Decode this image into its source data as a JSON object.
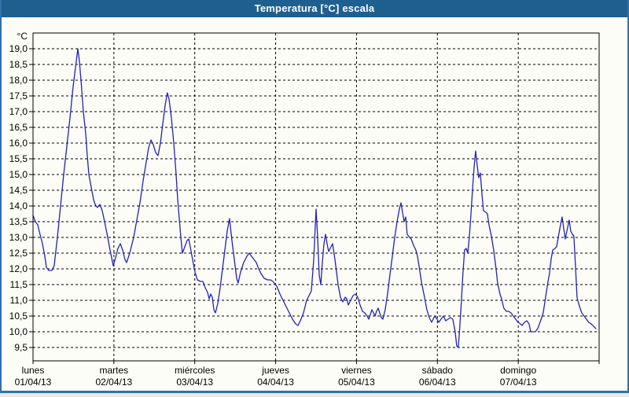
{
  "window": {
    "title": "Temperatura [°C] escala"
  },
  "colors": {
    "titlebar_bg": "#1f5f8f",
    "titlebar_text": "#ffffff",
    "frame_border": "#3470a8",
    "content_bg": "#fdfdf7",
    "grid": "#000000",
    "axis": "#000000",
    "series_line": "#2222b8"
  },
  "chart_data": {
    "type": "line",
    "title": "Temperatura [°C] escala",
    "grid": "dashed",
    "legend_position": "none",
    "y_axis": {
      "unit_label": "°C",
      "displayed_min": 9.0,
      "displayed_max": 19.5,
      "tick_max": 19.0,
      "tick_min": 9.5,
      "tick_step": 0.5,
      "tick_labels_top_to_bottom": [
        "19,0",
        "18,5",
        "18,0",
        "17,5",
        "17,0",
        "16,5",
        "16,0",
        "15,5",
        "15,0",
        "14,5",
        "14,0",
        "13,5",
        "13,0",
        "12,5",
        "12,0",
        "11,5",
        "11,0",
        "10,5",
        "10,0",
        "9,5"
      ]
    },
    "x_axis": {
      "range_days": [
        0,
        7
      ],
      "days": [
        {
          "name": "lunes",
          "date": "01/04/13"
        },
        {
          "name": "martes",
          "date": "02/04/13"
        },
        {
          "name": "miércoles",
          "date": "03/04/13"
        },
        {
          "name": "jueves",
          "date": "04/04/13"
        },
        {
          "name": "viernes",
          "date": "05/04/13"
        },
        {
          "name": "sábado",
          "date": "06/04/13"
        },
        {
          "name": "domingo",
          "date": "07/04/13"
        }
      ]
    },
    "series": [
      {
        "name": "Temperatura",
        "color": "#2222b8",
        "points_day_temp": [
          [
            0.0,
            13.7
          ],
          [
            0.029,
            13.5
          ],
          [
            0.058,
            13.4
          ],
          [
            0.087,
            13.1
          ],
          [
            0.117,
            12.8
          ],
          [
            0.146,
            12.4
          ],
          [
            0.165,
            12.05
          ],
          [
            0.194,
            11.95
          ],
          [
            0.233,
            11.95
          ],
          [
            0.262,
            12.1
          ],
          [
            0.301,
            13.0
          ],
          [
            0.34,
            14.0
          ],
          [
            0.379,
            15.0
          ],
          [
            0.418,
            15.9
          ],
          [
            0.457,
            16.8
          ],
          [
            0.496,
            17.8
          ],
          [
            0.525,
            18.4
          ],
          [
            0.554,
            19.0
          ],
          [
            0.574,
            18.6
          ],
          [
            0.593,
            18.0
          ],
          [
            0.622,
            17.0
          ],
          [
            0.651,
            16.3
          ],
          [
            0.671,
            15.6
          ],
          [
            0.69,
            15.0
          ],
          [
            0.719,
            14.6
          ],
          [
            0.749,
            14.2
          ],
          [
            0.768,
            14.05
          ],
          [
            0.797,
            13.95
          ],
          [
            0.826,
            14.05
          ],
          [
            0.856,
            13.85
          ],
          [
            0.885,
            13.5
          ],
          [
            0.924,
            13.0
          ],
          [
            0.953,
            12.6
          ],
          [
            0.992,
            12.1
          ],
          [
            1.021,
            12.35
          ],
          [
            1.05,
            12.65
          ],
          [
            1.079,
            12.8
          ],
          [
            1.108,
            12.6
          ],
          [
            1.137,
            12.3
          ],
          [
            1.157,
            12.2
          ],
          [
            1.196,
            12.5
          ],
          [
            1.244,
            13.0
          ],
          [
            1.283,
            13.55
          ],
          [
            1.322,
            14.1
          ],
          [
            1.361,
            14.8
          ],
          [
            1.4,
            15.4
          ],
          [
            1.429,
            15.85
          ],
          [
            1.458,
            16.1
          ],
          [
            1.487,
            15.95
          ],
          [
            1.517,
            15.7
          ],
          [
            1.546,
            15.6
          ],
          [
            1.575,
            16.0
          ],
          [
            1.604,
            16.6
          ],
          [
            1.633,
            17.2
          ],
          [
            1.662,
            17.6
          ],
          [
            1.682,
            17.4
          ],
          [
            1.711,
            16.8
          ],
          [
            1.74,
            16.0
          ],
          [
            1.769,
            15.0
          ],
          [
            1.789,
            14.2
          ],
          [
            1.808,
            13.6
          ],
          [
            1.828,
            13.0
          ],
          [
            1.847,
            12.5
          ],
          [
            1.876,
            12.7
          ],
          [
            1.905,
            12.9
          ],
          [
            1.925,
            12.95
          ],
          [
            1.944,
            12.7
          ],
          [
            1.973,
            12.3
          ],
          [
            2.003,
            11.9
          ],
          [
            2.032,
            11.65
          ],
          [
            2.071,
            11.6
          ],
          [
            2.1,
            11.6
          ],
          [
            2.129,
            11.4
          ],
          [
            2.158,
            11.25
          ],
          [
            2.178,
            11.05
          ],
          [
            2.197,
            11.2
          ],
          [
            2.217,
            11.1
          ],
          [
            2.236,
            10.7
          ],
          [
            2.256,
            10.6
          ],
          [
            2.285,
            10.9
          ],
          [
            2.314,
            11.4
          ],
          [
            2.343,
            12.0
          ],
          [
            2.372,
            12.6
          ],
          [
            2.401,
            13.2
          ],
          [
            2.43,
            13.6
          ],
          [
            2.46,
            12.9
          ],
          [
            2.489,
            12.3
          ],
          [
            2.518,
            11.7
          ],
          [
            2.537,
            11.55
          ],
          [
            2.567,
            11.9
          ],
          [
            2.605,
            12.2
          ],
          [
            2.644,
            12.4
          ],
          [
            2.673,
            12.5
          ],
          [
            2.703,
            12.4
          ],
          [
            2.732,
            12.3
          ],
          [
            2.761,
            12.2
          ],
          [
            2.79,
            12.0
          ],
          [
            2.819,
            11.85
          ],
          [
            2.858,
            11.7
          ],
          [
            2.897,
            11.65
          ],
          [
            2.936,
            11.65
          ],
          [
            2.965,
            11.6
          ],
          [
            3.014,
            11.45
          ],
          [
            3.053,
            11.2
          ],
          [
            3.092,
            11.0
          ],
          [
            3.13,
            10.8
          ],
          [
            3.169,
            10.6
          ],
          [
            3.208,
            10.4
          ],
          [
            3.247,
            10.25
          ],
          [
            3.276,
            10.2
          ],
          [
            3.306,
            10.35
          ],
          [
            3.344,
            10.6
          ],
          [
            3.383,
            11.0
          ],
          [
            3.413,
            11.15
          ],
          [
            3.442,
            11.3
          ],
          [
            3.471,
            12.3
          ],
          [
            3.5,
            13.9
          ],
          [
            3.519,
            13.0
          ],
          [
            3.539,
            11.8
          ],
          [
            3.558,
            11.5
          ],
          [
            3.578,
            12.2
          ],
          [
            3.597,
            12.8
          ],
          [
            3.617,
            13.1
          ],
          [
            3.636,
            12.8
          ],
          [
            3.656,
            12.55
          ],
          [
            3.685,
            12.7
          ],
          [
            3.704,
            12.8
          ],
          [
            3.733,
            12.3
          ],
          [
            3.753,
            11.9
          ],
          [
            3.772,
            11.5
          ],
          [
            3.801,
            11.1
          ],
          [
            3.831,
            10.95
          ],
          [
            3.86,
            11.1
          ],
          [
            3.879,
            11.05
          ],
          [
            3.899,
            10.85
          ],
          [
            3.928,
            11.0
          ],
          [
            3.957,
            11.15
          ],
          [
            3.986,
            11.2
          ],
          [
            4.015,
            11.1
          ],
          [
            4.044,
            10.85
          ],
          [
            4.074,
            10.65
          ],
          [
            4.103,
            10.6
          ],
          [
            4.132,
            10.5
          ],
          [
            4.151,
            10.4
          ],
          [
            4.171,
            10.55
          ],
          [
            4.19,
            10.7
          ],
          [
            4.21,
            10.6
          ],
          [
            4.229,
            10.5
          ],
          [
            4.248,
            10.65
          ],
          [
            4.268,
            10.75
          ],
          [
            4.287,
            10.6
          ],
          [
            4.307,
            10.45
          ],
          [
            4.326,
            10.4
          ],
          [
            4.355,
            10.7
          ],
          [
            4.384,
            11.2
          ],
          [
            4.413,
            11.8
          ],
          [
            4.443,
            12.4
          ],
          [
            4.472,
            13.0
          ],
          [
            4.501,
            13.5
          ],
          [
            4.53,
            13.9
          ],
          [
            4.55,
            14.1
          ],
          [
            4.569,
            13.8
          ],
          [
            4.589,
            13.5
          ],
          [
            4.608,
            13.65
          ],
          [
            4.627,
            13.1
          ],
          [
            4.656,
            13.0
          ],
          [
            4.676,
            12.95
          ],
          [
            4.705,
            12.75
          ],
          [
            4.734,
            12.6
          ],
          [
            4.754,
            12.4
          ],
          [
            4.773,
            12.1
          ],
          [
            4.802,
            11.6
          ],
          [
            4.841,
            11.1
          ],
          [
            4.87,
            10.7
          ],
          [
            4.899,
            10.45
          ],
          [
            4.929,
            10.3
          ],
          [
            4.948,
            10.4
          ],
          [
            4.967,
            10.5
          ],
          [
            4.996,
            10.4
          ],
          [
            5.016,
            10.3
          ],
          [
            5.045,
            10.4
          ],
          [
            5.074,
            10.5
          ],
          [
            5.103,
            10.35
          ],
          [
            5.132,
            10.4
          ],
          [
            5.161,
            10.45
          ],
          [
            5.191,
            10.4
          ],
          [
            5.22,
            10.0
          ],
          [
            5.239,
            9.55
          ],
          [
            5.259,
            9.5
          ],
          [
            5.278,
            10.2
          ],
          [
            5.298,
            11.0
          ],
          [
            5.317,
            11.9
          ],
          [
            5.337,
            12.6
          ],
          [
            5.356,
            12.65
          ],
          [
            5.375,
            12.5
          ],
          [
            5.395,
            13.0
          ],
          [
            5.414,
            13.7
          ],
          [
            5.434,
            14.5
          ],
          [
            5.453,
            15.2
          ],
          [
            5.473,
            15.75
          ],
          [
            5.492,
            15.3
          ],
          [
            5.511,
            14.9
          ],
          [
            5.531,
            15.05
          ],
          [
            5.55,
            14.4
          ],
          [
            5.57,
            13.85
          ],
          [
            5.599,
            13.8
          ],
          [
            5.618,
            13.75
          ],
          [
            5.638,
            13.4
          ],
          [
            5.667,
            13.05
          ],
          [
            5.696,
            12.6
          ],
          [
            5.725,
            12.0
          ],
          [
            5.745,
            11.55
          ],
          [
            5.774,
            11.2
          ],
          [
            5.793,
            11.05
          ],
          [
            5.822,
            10.75
          ],
          [
            5.852,
            10.65
          ],
          [
            5.881,
            10.65
          ],
          [
            5.91,
            10.6
          ],
          [
            5.939,
            10.5
          ],
          [
            5.968,
            10.4
          ],
          [
            5.998,
            10.3
          ],
          [
            6.027,
            10.25
          ],
          [
            6.047,
            10.2
          ],
          [
            6.076,
            10.3
          ],
          [
            6.105,
            10.35
          ],
          [
            6.134,
            10.25
          ],
          [
            6.154,
            10.0
          ],
          [
            6.183,
            10.0
          ],
          [
            6.212,
            10.0
          ],
          [
            6.241,
            10.1
          ],
          [
            6.27,
            10.3
          ],
          [
            6.309,
            10.6
          ],
          [
            6.338,
            11.1
          ],
          [
            6.368,
            11.6
          ],
          [
            6.387,
            11.85
          ],
          [
            6.406,
            12.3
          ],
          [
            6.426,
            12.6
          ],
          [
            6.455,
            12.65
          ],
          [
            6.474,
            12.7
          ],
          [
            6.494,
            13.0
          ],
          [
            6.523,
            13.4
          ],
          [
            6.542,
            13.65
          ],
          [
            6.562,
            13.3
          ],
          [
            6.581,
            12.95
          ],
          [
            6.601,
            13.2
          ],
          [
            6.63,
            13.55
          ],
          [
            6.649,
            13.2
          ],
          [
            6.668,
            13.1
          ],
          [
            6.688,
            13.05
          ],
          [
            6.707,
            12.1
          ],
          [
            6.727,
            11.1
          ],
          [
            6.746,
            10.9
          ],
          [
            6.765,
            10.75
          ],
          [
            6.785,
            10.6
          ],
          [
            6.814,
            10.5
          ],
          [
            6.843,
            10.4
          ],
          [
            6.872,
            10.3
          ],
          [
            6.901,
            10.25
          ],
          [
            6.93,
            10.18
          ],
          [
            6.96,
            10.1
          ]
        ]
      }
    ]
  }
}
